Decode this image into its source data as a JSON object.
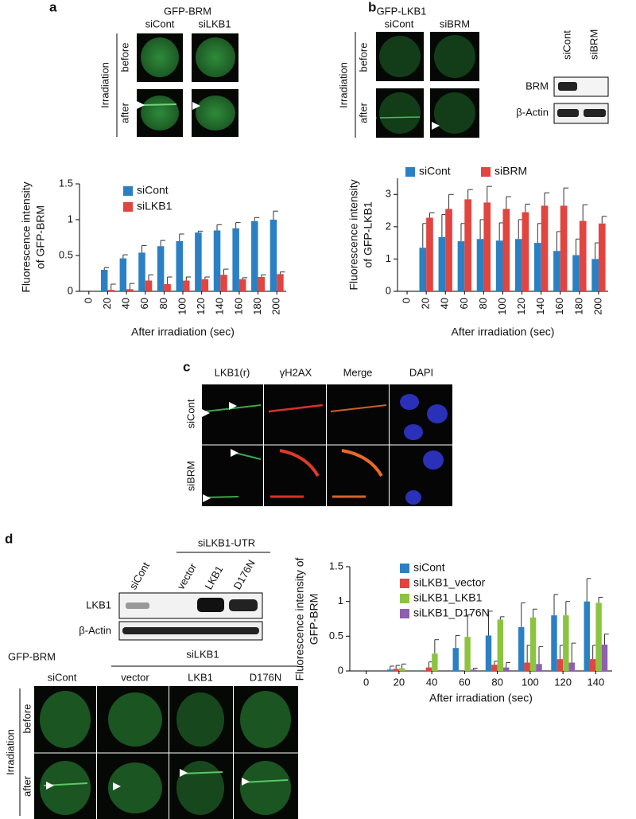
{
  "panels": {
    "a": "a",
    "b": "b",
    "c": "c",
    "d": "d"
  },
  "panel_a": {
    "title": "GFP-BRM",
    "columns": [
      "siCont",
      "siLKB1"
    ],
    "group": "Irradiation",
    "rows": [
      "before",
      "after"
    ]
  },
  "panel_b": {
    "title": "GFP-LKB1",
    "columns": [
      "siCont",
      "siBRM"
    ],
    "group": "Irradiation",
    "rows": [
      "before",
      "after"
    ],
    "blot": {
      "columns": [
        "siCont",
        "siBRM"
      ],
      "rows": [
        "BRM",
        "β-Actin"
      ]
    }
  },
  "panel_c": {
    "columns": [
      "LKB1(r)",
      "γH2AX",
      "Merge",
      "DAPI"
    ],
    "rows": [
      "siCont",
      "siBRM"
    ]
  },
  "panel_d": {
    "blot": {
      "group": "siLKB1-UTR",
      "columns": [
        "siCont",
        "vector",
        "LKB1",
        "D176N"
      ],
      "rows": [
        "LKB1",
        "β-Actin"
      ]
    },
    "title": "GFP-BRM",
    "group": "siLKB1",
    "columns": [
      "siCont",
      "vector",
      "LKB1",
      "D176N"
    ],
    "rows_group": "Irradiation",
    "rows": [
      "before",
      "after"
    ]
  },
  "chart_data": [
    {
      "type": "bar",
      "ylabel": [
        "Fluorescence intensity",
        "of GFP-BRM"
      ],
      "xlabel": "After irradiation (sec)",
      "categories": [
        "0",
        "20",
        "40",
        "60",
        "80",
        "100",
        "120",
        "140",
        "160",
        "180",
        "200"
      ],
      "ylim": [
        0,
        1.5
      ],
      "yticks": [
        0,
        0.5,
        1,
        1.5
      ],
      "series": [
        {
          "name": "siCont",
          "color": "#2b80c3",
          "values": [
            null,
            0.3,
            0.46,
            0.54,
            0.63,
            0.7,
            0.82,
            0.85,
            0.88,
            0.98,
            1.0
          ],
          "errors": [
            null,
            0.03,
            0.05,
            0.1,
            0.08,
            0.1,
            0.02,
            0.08,
            0.08,
            0.05,
            0.12
          ]
        },
        {
          "name": "siLKB1",
          "color": "#e2443f",
          "values": [
            null,
            0.02,
            0.03,
            0.15,
            0.1,
            0.15,
            0.17,
            0.23,
            0.17,
            0.2,
            0.24
          ],
          "errors": [
            null,
            0.08,
            0.08,
            0.08,
            0.1,
            0.05,
            0.03,
            0.08,
            0.02,
            0.03,
            0.03
          ]
        }
      ]
    },
    {
      "type": "bar",
      "ylabel": [
        "Fluorescence intensity",
        "of GFP-LKB1"
      ],
      "xlabel": "After irradiation (sec)",
      "categories": [
        "0",
        "20",
        "40",
        "60",
        "80",
        "100",
        "120",
        "140",
        "160",
        "180",
        "200"
      ],
      "ylim": [
        0,
        3.5
      ],
      "yticks": [
        0,
        1,
        2,
        3
      ],
      "series": [
        {
          "name": "siCont",
          "color": "#2b80c3",
          "values": [
            null,
            1.35,
            1.68,
            1.55,
            1.62,
            1.57,
            1.62,
            1.5,
            1.25,
            1.12,
            1.0
          ],
          "errors": [
            null,
            0.75,
            0.7,
            0.55,
            0.6,
            0.55,
            0.6,
            0.6,
            0.6,
            0.5,
            0.5
          ]
        },
        {
          "name": "siBRM",
          "color": "#e2443f",
          "values": [
            null,
            2.28,
            2.55,
            2.85,
            2.75,
            2.55,
            2.45,
            2.65,
            2.65,
            2.18,
            2.1
          ],
          "errors": [
            null,
            0.15,
            0.45,
            0.3,
            0.5,
            0.38,
            0.25,
            0.4,
            0.55,
            0.5,
            0.22
          ]
        }
      ]
    },
    {
      "type": "bar",
      "ylabel": [
        "Fluorescence intensity of",
        "GFP-BRM"
      ],
      "xlabel": "After irradiation (sec)",
      "categories": [
        "0",
        "20",
        "40",
        "60",
        "80",
        "100",
        "120",
        "140"
      ],
      "ylim": [
        0,
        1.5
      ],
      "yticks": [
        0,
        0.5,
        1,
        1.5
      ],
      "series": [
        {
          "name": "siCont",
          "color": "#2b80c3",
          "values": [
            null,
            0.02,
            0,
            0.33,
            0.51,
            0.63,
            0.8,
            1.0
          ],
          "errors": [
            null,
            0.05,
            0,
            0.18,
            0.35,
            0.35,
            0.3,
            0.33
          ]
        },
        {
          "name": "siLKB1_vector",
          "color": "#e2443f",
          "values": [
            null,
            0.03,
            0.05,
            0,
            0.09,
            0.12,
            0.17,
            0.17
          ],
          "errors": [
            null,
            0.05,
            0.08,
            0,
            0.05,
            0.25,
            0.2,
            0.2
          ]
        },
        {
          "name": "siLKB1_LKB1",
          "color": "#8cc440",
          "values": [
            null,
            0.04,
            0.25,
            0.49,
            0.74,
            0.77,
            0.8,
            0.98
          ],
          "errors": [
            null,
            0.06,
            0.2,
            0.32,
            0.04,
            0.12,
            0.2,
            0.08
          ]
        },
        {
          "name": "siLKB1_D176N",
          "color": "#8e60ad",
          "values": [
            null,
            0,
            0,
            0.02,
            0.05,
            0.1,
            0.12,
            0.38
          ],
          "errors": [
            null,
            0,
            0,
            0.02,
            0.07,
            0.25,
            0.28,
            0.15
          ]
        }
      ]
    }
  ]
}
